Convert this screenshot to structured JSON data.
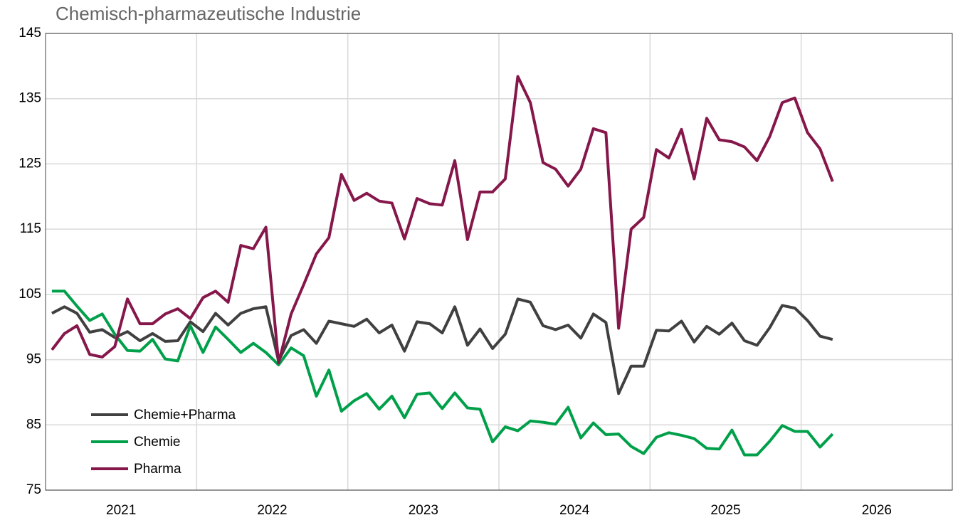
{
  "chart_data": {
    "type": "line",
    "title": "Chemisch-pharmazeutische Industrie",
    "x": [
      2021.042,
      2021.125,
      2021.208,
      2021.292,
      2021.375,
      2021.458,
      2021.542,
      2021.625,
      2021.708,
      2021.792,
      2021.875,
      2021.958,
      2022.042,
      2022.125,
      2022.208,
      2022.292,
      2022.375,
      2022.458,
      2022.542,
      2022.625,
      2022.708,
      2022.792,
      2022.875,
      2022.958,
      2023.042,
      2023.125,
      2023.208,
      2023.292,
      2023.375,
      2023.458,
      2023.542,
      2023.625,
      2023.708,
      2023.792,
      2023.875,
      2023.958,
      2024.042,
      2024.125,
      2024.208,
      2024.292,
      2024.375,
      2024.458,
      2024.542,
      2024.625,
      2024.708,
      2024.792,
      2024.875,
      2024.958,
      2025.042,
      2025.125,
      2025.208,
      2025.292,
      2025.375,
      2025.458,
      2025.542,
      2025.625,
      2025.708,
      2025.792,
      2025.875,
      2025.958,
      2026.042,
      2026.125,
      2026.208
    ],
    "series": [
      {
        "name": "Chemie+Pharma",
        "color": "#404040",
        "values": [
          102.1,
          103.1,
          102.1,
          99.2,
          99.6,
          98.4,
          99.3,
          97.9,
          99,
          97.8,
          97.9,
          100.8,
          99.3,
          102.1,
          100.3,
          102.1,
          102.8,
          103.1,
          94.8,
          98.7,
          99.6,
          97.5,
          100.9,
          100.5,
          100.1,
          101.2,
          99.1,
          100.3,
          96.3,
          100.8,
          100.5,
          99.1,
          103.1,
          97.2,
          99.7,
          96.7,
          98.9,
          104.3,
          103.8,
          100.2,
          99.6,
          100.3,
          98.3,
          102,
          100.7,
          89.8,
          94,
          94,
          99.5,
          99.4,
          100.9,
          97.7,
          100.1,
          98.9,
          100.6,
          97.9,
          97.2,
          99.9,
          103.3,
          102.9,
          101,
          98.6,
          98.1
        ]
      },
      {
        "name": "Chemie",
        "color": "#00a04a",
        "values": [
          105.5,
          105.5,
          103.2,
          101,
          102,
          98.9,
          96.4,
          96.3,
          98.1,
          95.1,
          94.8,
          100.2,
          96.1,
          100,
          98.1,
          96.1,
          97.5,
          96.1,
          94.2,
          96.8,
          95.6,
          89.4,
          93.4,
          87.1,
          88.7,
          89.8,
          87.4,
          89.4,
          86.1,
          89.7,
          89.9,
          87.5,
          89.9,
          87.6,
          87.4,
          82.4,
          84.7,
          84.1,
          85.6,
          85.4,
          85.1,
          87.7,
          83,
          85.3,
          83.5,
          83.6,
          81.7,
          80.6,
          83.1,
          83.8,
          83.4,
          82.9,
          81.4,
          81.3,
          84.2,
          80.4,
          80.4,
          82.5,
          84.9,
          84,
          84,
          81.6,
          83.6
        ]
      },
      {
        "name": "Pharma",
        "color": "#85174a",
        "values": [
          96.5,
          99,
          100.2,
          95.8,
          95.4,
          97,
          104.3,
          100.5,
          100.5,
          102,
          102.8,
          101.3,
          104.5,
          105.5,
          103.8,
          112.5,
          112,
          115.3,
          94.5,
          102,
          106.5,
          111.2,
          113.7,
          123.4,
          119.4,
          120.5,
          119.3,
          119,
          113.5,
          119.7,
          118.9,
          118.7,
          125.5,
          113.4,
          120.7,
          120.7,
          122.7,
          138.4,
          134.4,
          125.2,
          124.2,
          121.6,
          124.2,
          130.4,
          129.8,
          99.8,
          115,
          116.8,
          127.2,
          125.9,
          130.3,
          122.7,
          132,
          128.7,
          128.4,
          127.6,
          125.5,
          129.2,
          134.4,
          135.1,
          129.8,
          127.3,
          122.3
        ]
      }
    ],
    "xlim": [
      2021,
      2027
    ],
    "xticks": [
      {
        "value": 2021.5,
        "label": "2021"
      },
      {
        "value": 2022.5,
        "label": "2022"
      },
      {
        "value": 2023.5,
        "label": "2023"
      },
      {
        "value": 2024.5,
        "label": "2024"
      },
      {
        "value": 2025.5,
        "label": "2025"
      },
      {
        "value": 2026.5,
        "label": "2026"
      }
    ],
    "xgrid": [
      2022,
      2023,
      2024,
      2025,
      2026
    ],
    "ylim": [
      75,
      145
    ],
    "yticks": [
      75,
      85,
      95,
      105,
      115,
      125,
      135,
      145
    ],
    "grid": true,
    "legend": "lower-left"
  }
}
